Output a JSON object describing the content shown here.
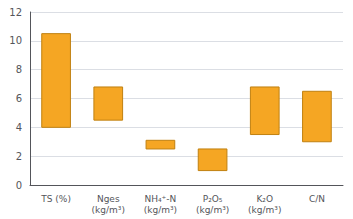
{
  "chart_data": {
    "type": "bar",
    "categories": [
      "TS (%)",
      "Nges\n(kg/m³)",
      "NH₄⁺-N\n(kg/m³)",
      "P₂O₅\n(kg/m³)",
      "K₂O\n(kg/m³)",
      "C/N"
    ],
    "bottoms": [
      4.0,
      4.5,
      2.5,
      1.0,
      3.5,
      3.0
    ],
    "values": [
      10.5,
      6.8,
      3.1,
      2.5,
      6.8,
      6.5
    ],
    "color": "#F5A623",
    "ylim": [
      0,
      12
    ],
    "yticks": [
      0,
      2,
      4,
      6,
      8,
      10,
      12
    ],
    "grid": true
  }
}
